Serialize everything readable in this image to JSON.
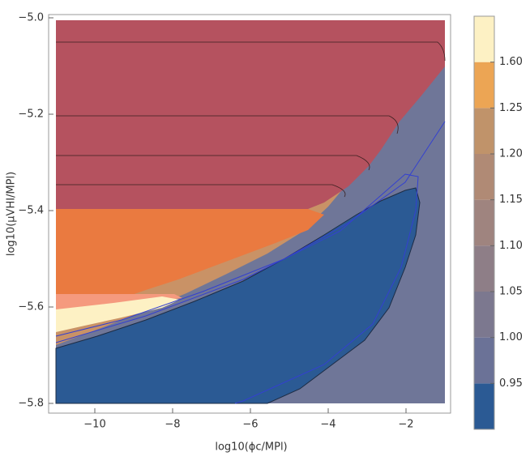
{
  "chart_data": {
    "type": "contour",
    "x_label": "log10(ϕc/MPl)",
    "y_label": "log10(μVHI/MPl)",
    "xlim": [
      -11,
      -1
    ],
    "ylim": [
      -5.8,
      -5.0
    ],
    "xticks": [
      {
        "value": -10,
        "label": "−10"
      },
      {
        "value": -8,
        "label": "−8"
      },
      {
        "value": -6,
        "label": "−6"
      },
      {
        "value": -4,
        "label": "−4"
      },
      {
        "value": -2,
        "label": "−2"
      }
    ],
    "yticks": [
      {
        "value": -5.8,
        "label": "−5.8"
      },
      {
        "value": -5.6,
        "label": "−5.6"
      },
      {
        "value": -5.4,
        "label": "−5.4"
      },
      {
        "value": -5.2,
        "label": "−5.2"
      },
      {
        "value": -5.0,
        "label": "−5.0"
      }
    ],
    "colorbar": {
      "ticks": [
        0.95,
        {
          "value": 1,
          "label": "1.00"
        },
        1.05,
        {
          "value": 1.1,
          "label": "1.10"
        },
        1.15,
        {
          "value": 1.2,
          "label": "1.20"
        },
        1.25,
        {
          "value": 1.6,
          "label": "1.60"
        }
      ],
      "colors": [
        "#2b5a94",
        "#6b7297",
        "#7c788f",
        "#8e7e87",
        "#9f847f",
        "#b08a75",
        "#c0936a",
        "#eca554",
        "#fdf1c4"
      ]
    }
  }
}
